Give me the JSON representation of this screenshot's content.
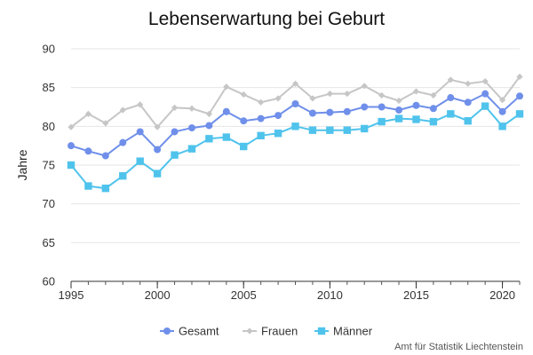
{
  "chart_data": {
    "type": "line",
    "title": "Lebenserwartung bei Geburt",
    "xlabel": "",
    "ylabel": "Jahre",
    "source": "Amt für Statistik Liechtenstein",
    "xlim": [
      1995,
      2021
    ],
    "ylim": [
      60,
      90
    ],
    "x_ticks": [
      1995,
      2000,
      2005,
      2010,
      2015,
      2020
    ],
    "y_ticks": [
      60,
      65,
      70,
      75,
      80,
      85,
      90
    ],
    "grid": "horizontal",
    "legend": "bottom",
    "x": [
      1995,
      1996,
      1997,
      1998,
      1999,
      2000,
      2001,
      2002,
      2003,
      2004,
      2005,
      2006,
      2007,
      2008,
      2009,
      2010,
      2011,
      2012,
      2013,
      2014,
      2015,
      2016,
      2017,
      2018,
      2019,
      2020,
      2021
    ],
    "series": [
      {
        "name": "Gesamt",
        "color": "#6f8fea",
        "marker": "circle",
        "values": [
          77.5,
          76.8,
          76.2,
          77.9,
          79.3,
          77.0,
          79.3,
          79.8,
          80.1,
          81.9,
          80.7,
          81.0,
          81.4,
          82.9,
          81.7,
          81.8,
          81.9,
          82.5,
          82.5,
          82.1,
          82.7,
          82.3,
          83.7,
          83.1,
          84.2,
          81.9,
          83.9
        ]
      },
      {
        "name": "Frauen",
        "color": "#c6c6c6",
        "marker": "diamond",
        "values": [
          79.9,
          81.6,
          80.4,
          82.1,
          82.8,
          79.9,
          82.4,
          82.3,
          81.6,
          85.1,
          84.1,
          83.1,
          83.6,
          85.5,
          83.6,
          84.2,
          84.2,
          85.2,
          84.0,
          83.3,
          84.5,
          84.0,
          86.0,
          85.5,
          85.8,
          83.4,
          86.4
        ]
      },
      {
        "name": "Männer",
        "color": "#4fc3ec",
        "marker": "square",
        "values": [
          75.0,
          72.3,
          72.0,
          73.6,
          75.5,
          73.9,
          76.3,
          77.1,
          78.4,
          78.6,
          77.4,
          78.8,
          79.1,
          80.0,
          79.5,
          79.5,
          79.5,
          79.7,
          80.6,
          81.0,
          80.9,
          80.6,
          81.6,
          80.7,
          82.6,
          80.0,
          81.6
        ]
      }
    ]
  }
}
